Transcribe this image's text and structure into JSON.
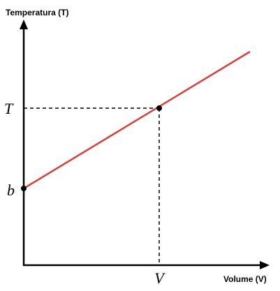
{
  "axes": {
    "y_label": "Temperatura (T)",
    "x_label": "Volume (V)"
  },
  "labels": {
    "temperature": "T",
    "intercept": "b",
    "volume": "V"
  }
}
